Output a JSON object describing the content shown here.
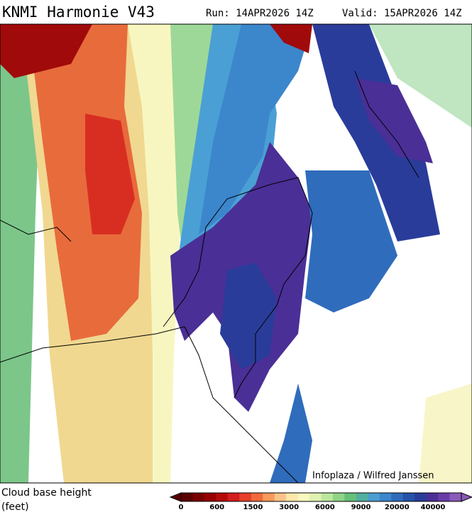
{
  "header": {
    "title": "KNMI Harmonie V43",
    "run": "Run: 14APR2026 14Z",
    "valid": "Valid: 15APR2026 14Z"
  },
  "map": {
    "credit": "Infoplaza / Wilfred Janssen"
  },
  "legend": {
    "label": "Cloud base height",
    "unit": "(feet)",
    "colors": [
      "#5a0000",
      "#7a0000",
      "#960000",
      "#b40a0a",
      "#d21e1e",
      "#e6402a",
      "#f06a3c",
      "#f89a5a",
      "#fcc488",
      "#fde8aa",
      "#f8f8c0",
      "#e0f2b0",
      "#bce6a0",
      "#90d488",
      "#66c07a",
      "#52b0a0",
      "#4a9ed0",
      "#3c86cc",
      "#2f6cbc",
      "#2652a8",
      "#2a3c9a",
      "#4a2f96",
      "#6a3ca8",
      "#8a5ab8"
    ],
    "ticks": [
      0,
      600,
      1500,
      3000,
      6000,
      9000,
      20000,
      40000
    ]
  }
}
